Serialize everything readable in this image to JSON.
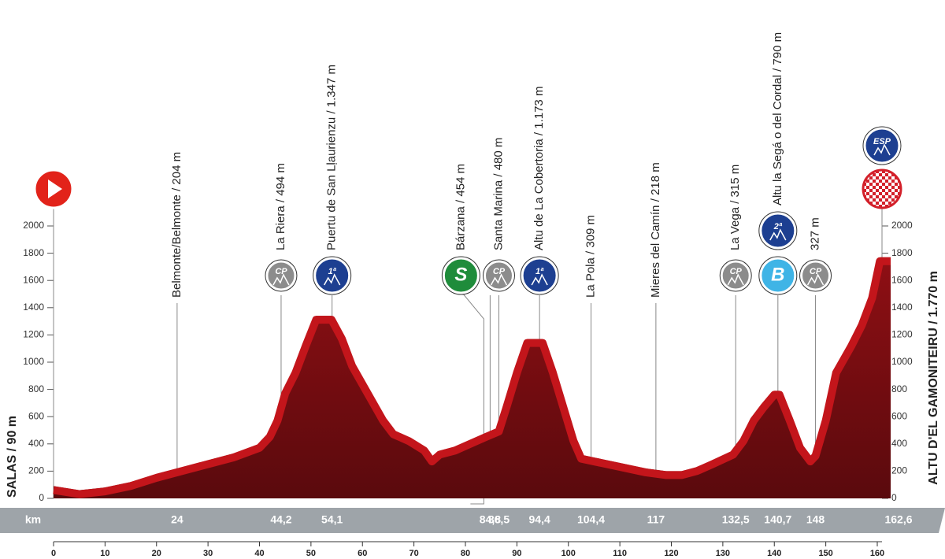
{
  "chart_data": {
    "type": "area",
    "x": [
      0,
      5,
      10,
      15,
      20,
      25,
      30,
      35,
      40,
      42,
      43.5,
      45,
      47,
      49,
      51,
      54,
      56,
      58,
      61,
      64,
      66,
      69,
      72,
      73.5,
      75,
      78,
      81,
      84,
      86.5,
      88,
      90,
      92,
      95,
      97,
      99,
      101,
      102.5,
      105,
      110,
      115,
      119,
      122,
      125,
      128,
      132,
      134,
      136,
      138,
      140,
      141,
      143,
      145,
      147,
      148,
      150,
      152,
      155,
      157,
      159,
      160.5,
      162.6
    ],
    "values": [
      90,
      60,
      80,
      120,
      180,
      230,
      280,
      330,
      400,
      480,
      600,
      800,
      950,
      1150,
      1340,
      1340,
      1200,
      1000,
      800,
      600,
      500,
      450,
      380,
      300,
      350,
      380,
      430,
      480,
      520,
      700,
      950,
      1170,
      1170,
      950,
      700,
      450,
      320,
      300,
      260,
      220,
      200,
      200,
      230,
      280,
      350,
      450,
      600,
      700,
      790,
      790,
      600,
      400,
      300,
      340,
      600,
      950,
      1150,
      1300,
      1500,
      1770,
      1770
    ],
    "color": "#c3151b",
    "xlim": [
      0,
      162.6
    ],
    "xticks": [
      0,
      10,
      20,
      30,
      40,
      50,
      60,
      70,
      80,
      90,
      100,
      110,
      120,
      130,
      140,
      150,
      160
    ],
    "ylim": [
      0,
      2000
    ],
    "yticks": [
      0,
      200,
      400,
      600,
      800,
      1000,
      1200,
      1400,
      1600,
      1800,
      2000
    ],
    "km_label": "km",
    "start": {
      "label": "SALAS / 90 m"
    },
    "finish": {
      "label": "ALTU D'EL GAMONITEIRU / 1.770 m",
      "km": {
        "value": 162.6,
        "label": "162,6"
      },
      "icons": [
        {
          "text": "ESP",
          "color": "#1d3f91"
        }
      ]
    },
    "waypoints": [
      {
        "km": 24,
        "label": "Belmonte/Belmonte / 204 m",
        "icons": []
      },
      {
        "km": {
          "value": 44.2,
          "label": "44,2"
        },
        "label": "La Riera / 494 m",
        "icons": [
          {
            "text": "CP",
            "color": "#8c8c8c"
          }
        ]
      },
      {
        "km": {
          "value": 54.1,
          "label": "54,1"
        },
        "label": "Puertu de San Lḷaurienzu / 1.347 m",
        "icons": [
          {
            "text": "1ª",
            "color": "#1d3f91"
          }
        ]
      },
      {
        "km": {
          "value": 84.8,
          "label": "84,8"
        },
        "label": "Bárzana / 454 m",
        "icons": [
          {
            "text": "S",
            "color": "#1f8c3b"
          }
        ]
      },
      {
        "km": {
          "value": 86.5,
          "label": "86,5"
        },
        "label": "Santa Marina / 480 m",
        "icons": [
          {
            "text": "CP",
            "color": "#8c8c8c"
          }
        ]
      },
      {
        "km": {
          "value": 94.4,
          "label": "94,4"
        },
        "label": "Altu de La Cobertoria / 1.173 m",
        "icons": [
          {
            "text": "1ª",
            "color": "#1d3f91"
          }
        ]
      },
      {
        "km": {
          "value": 104.4,
          "label": "104,4"
        },
        "label": "La Pola / 309 m",
        "icons": []
      },
      {
        "km": 117,
        "label": "Mieres del Camín / 218 m",
        "icons": []
      },
      {
        "km": {
          "value": 132.5,
          "label": "132,5"
        },
        "label": "La Vega / 315 m",
        "icons": [
          {
            "text": "CP",
            "color": "#8c8c8c"
          }
        ]
      },
      {
        "km": {
          "value": 140.7,
          "label": "140,7"
        },
        "label": "Altu la Segá o del Cordal / 790 m",
        "icons": [
          {
            "text": "B",
            "color": "#3fb4e6"
          },
          {
            "text": "2ª",
            "color": "#1d3f91"
          }
        ]
      },
      {
        "km": 148,
        "label": "327 m",
        "icons": [
          {
            "text": "CP",
            "color": "#8c8c8c"
          }
        ]
      }
    ]
  }
}
